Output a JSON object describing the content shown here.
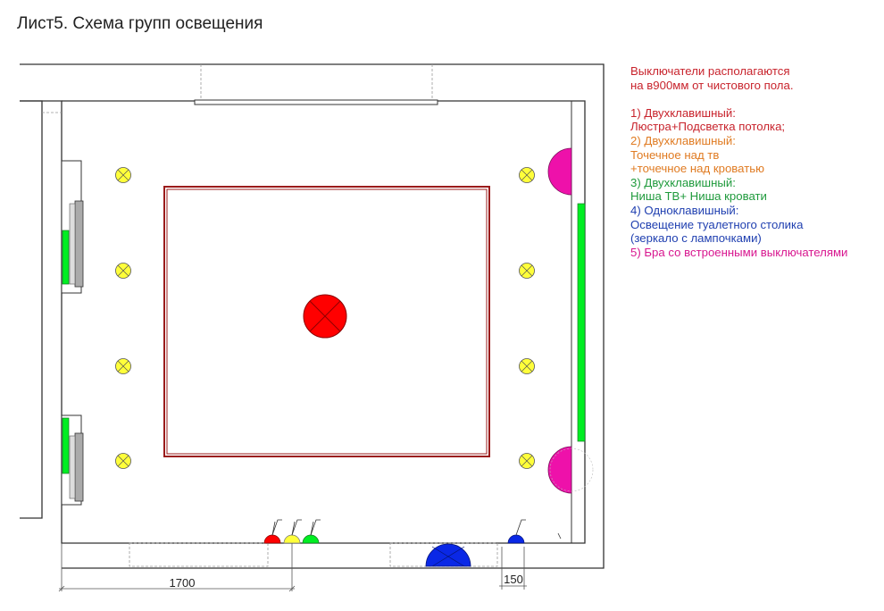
{
  "title": "Лист5. Схема групп освещения",
  "legend": {
    "intro": [
      "Выключатели располагаются",
      "на в900мм от чистового пола."
    ],
    "groups": [
      {
        "lines": [
          "1) Двухклавишный:",
          "Люстра+Подсветка потолка;"
        ],
        "color": "#c8232c"
      },
      {
        "lines": [
          "2) Двухклавишный:",
          "Точечное над тв",
          "+точечное над кроватью"
        ],
        "color": "#e07b22"
      },
      {
        "lines": [
          "3) Двухклавишный:",
          "Ниша ТВ+ Ниша кровати"
        ],
        "color": "#1f9a3c"
      },
      {
        "lines": [
          "4) Одноклавишный:",
          "Освещение туалетного столика",
          "(зеркало с лампочками)"
        ],
        "color": "#1f3fb0"
      },
      {
        "lines": [
          "5) Бра со встроенными выключателями"
        ],
        "color": "#d8168f"
      }
    ]
  },
  "dimensions": {
    "left": "1700",
    "right": "150"
  },
  "colors": {
    "chandelier": "#ff0000",
    "spot": "#ffff3a",
    "niche": "#00ee22",
    "sconce": "#ee11aa",
    "mirror": "#0a28e6",
    "ceiling": "#9b1b1b",
    "wall": "#333333"
  }
}
